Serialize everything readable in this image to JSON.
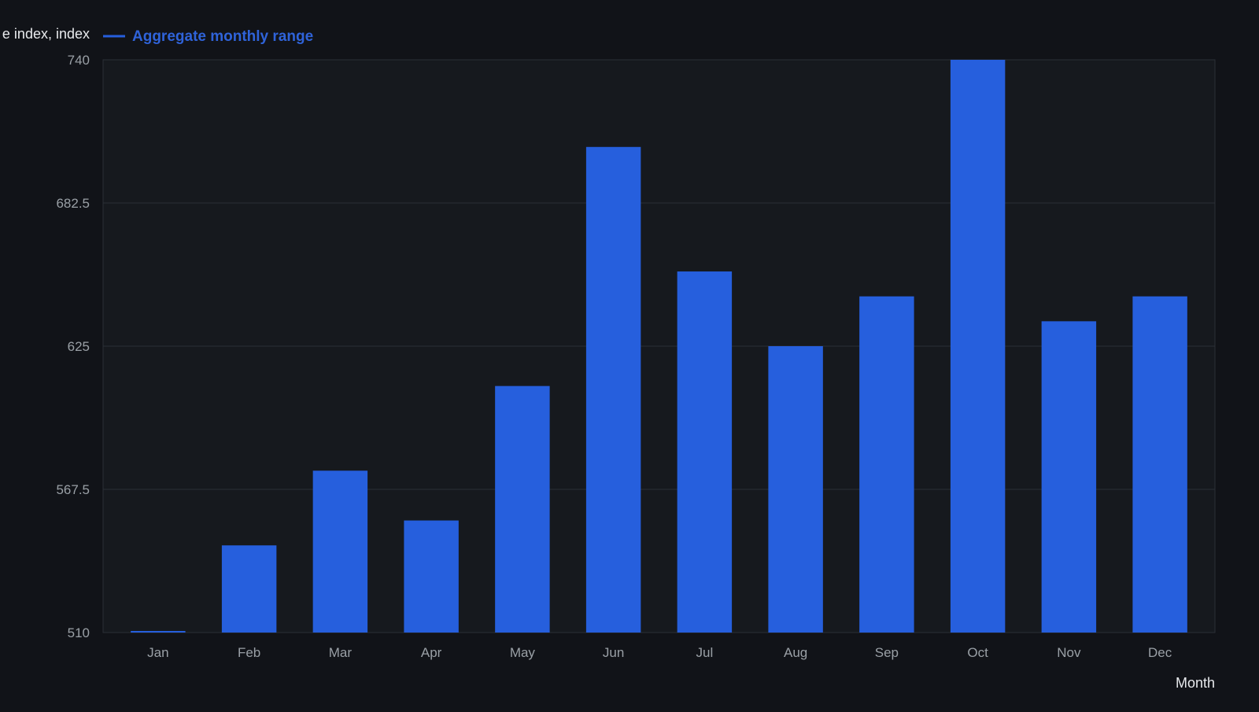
{
  "chart_data": {
    "type": "bar",
    "ylabel": "e index, index",
    "xlabel": "Month",
    "categories": [
      "Jan",
      "Feb",
      "Mar",
      "Apr",
      "May",
      "Jun",
      "Jul",
      "Aug",
      "Sep",
      "Oct",
      "Nov",
      "Dec"
    ],
    "series": [
      {
        "name": "Aggregate monthly range",
        "values": [
          510,
          545,
          575,
          555,
          609,
          705,
          655,
          625,
          645,
          740,
          635,
          645
        ]
      }
    ],
    "ylim": [
      510,
      740
    ],
    "yticks": [
      "510",
      "567.5",
      "625",
      "682.5",
      "740"
    ],
    "grid": true,
    "legend_position": "top-left",
    "colors": {
      "background": "#111318",
      "plot_background": "#16191e",
      "bar": "#265fdd",
      "grid": "#2b2f36",
      "tick_text": "#9aa0a6",
      "label_text": "#e8eaed",
      "legend_text": "#2f63d9"
    }
  }
}
